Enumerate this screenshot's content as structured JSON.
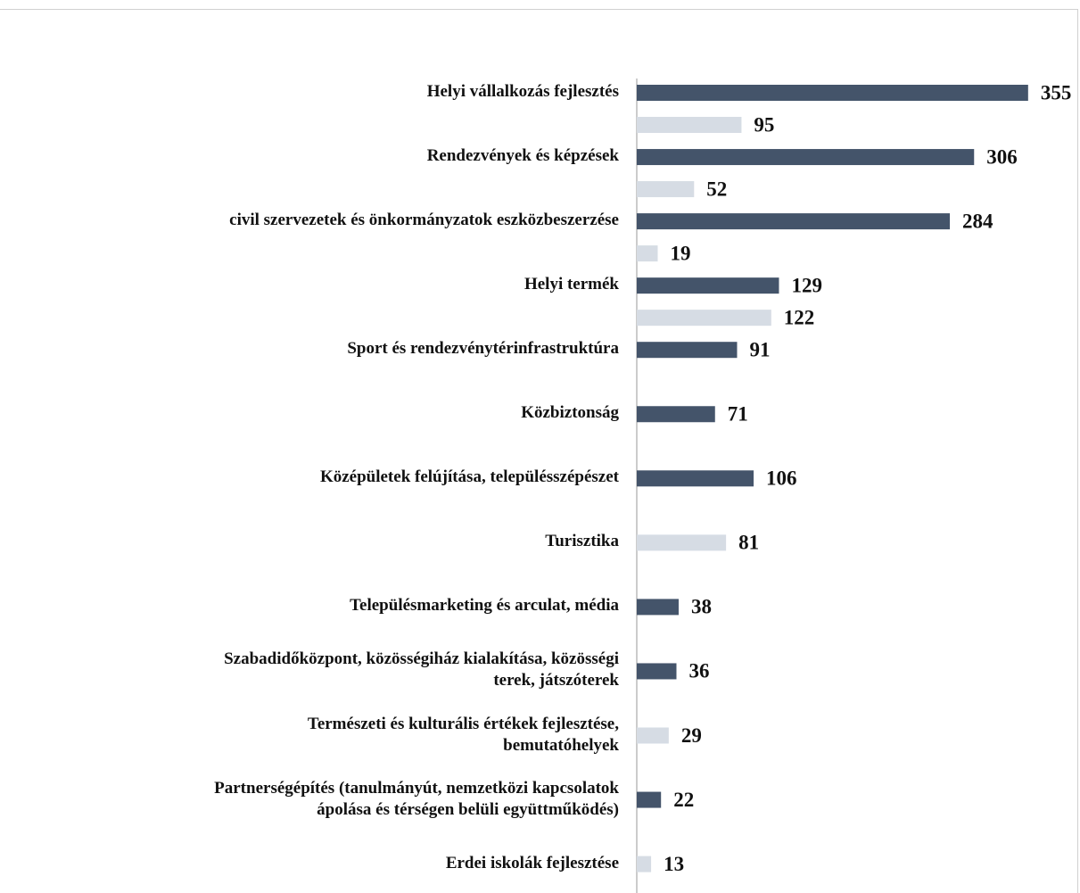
{
  "chart_data": {
    "type": "bar",
    "orientation": "horizontal",
    "categories": [
      "Helyi vállalkozás fejlesztés",
      "Rendezvények és képzések",
      "civil szervezetek és önkormányzatok eszközbeszerzése",
      "Helyi termék",
      "Sport és rendezvénytérinfrastruktúra",
      "Közbiztonság",
      "Középületek felújítása, településszépészet",
      "Turisztika",
      "Településmarketing és arculat, média",
      "Szabadidőközpont, közösségiház kialakítása, közösségi\nterek, játszóterek",
      "Természeti és kulturális értékek fejlesztése,\nbemutatóhelyek",
      "Partnerségépítés (tanulmányút, nemzetközi kapcsolatok\nápolása és térségen belüli együttműködés)",
      "Erdei iskolák fejlesztése"
    ],
    "series": [
      {
        "color": "#44546a",
        "values": [
          355,
          306,
          284,
          129,
          91,
          71,
          106,
          null,
          38,
          36,
          null,
          22,
          null
        ]
      },
      {
        "color": "#d6dce4",
        "values": [
          95,
          52,
          19,
          122,
          null,
          null,
          null,
          81,
          null,
          null,
          29,
          null,
          13
        ]
      }
    ],
    "xlim": [
      0,
      360
    ]
  }
}
